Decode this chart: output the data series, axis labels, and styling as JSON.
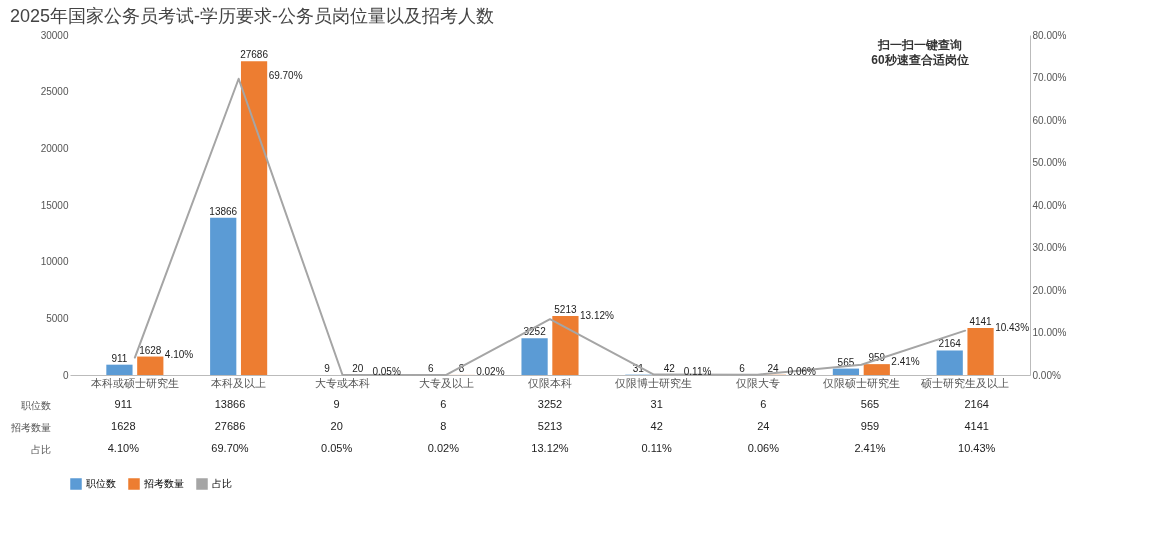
{
  "chart_data": {
    "type": "bar",
    "title": "2025年国家公务员考试-学历要求-公务员岗位量以及招考人数",
    "categories": [
      "本科或硕士研究生",
      "本科及以上",
      "大专或本科",
      "大专及以上",
      "仅限本科",
      "仅限博士研究生",
      "仅限大专",
      "仅限硕士研究生",
      "硕士研究生及以上"
    ],
    "series": [
      {
        "name": "职位数",
        "color": "#5b9bd5",
        "values": [
          911,
          13866,
          9,
          6,
          3252,
          31,
          6,
          565,
          2164
        ],
        "value_labels": [
          "911",
          "13866",
          "9",
          "6",
          "3252",
          "31",
          "6",
          "565",
          "2164"
        ]
      },
      {
        "name": "招考数量",
        "color": "#ed7d31",
        "values": [
          1628,
          27686,
          20,
          8,
          5213,
          42,
          24,
          959,
          4141
        ],
        "value_labels": [
          "1628",
          "27686",
          "20",
          "8",
          "5213",
          "42",
          "24",
          "959",
          "4141"
        ]
      },
      {
        "name": "占比",
        "type": "line",
        "axis": "y2",
        "color": "#a5a5a5",
        "values": [
          4.1,
          69.7,
          0.05,
          0.02,
          13.12,
          0.11,
          0.06,
          2.41,
          10.43
        ],
        "value_labels": [
          "4.10%",
          "69.70%",
          "0.05%",
          "0.02%",
          "13.12%",
          "0.11%",
          "0.06%",
          "2.41%",
          "10.43%"
        ]
      }
    ],
    "ylim": [
      0,
      30000
    ],
    "yticks": [
      0,
      5000,
      10000,
      15000,
      20000,
      25000,
      30000
    ],
    "y2lim": [
      0,
      80
    ],
    "y2ticks": [
      {
        "value": 0,
        "label": "0.00%"
      },
      {
        "value": 10,
        "label": "10.00%"
      },
      {
        "value": 20,
        "label": "20.00%"
      },
      {
        "value": 30,
        "label": "30.00%"
      },
      {
        "value": 40,
        "label": "40.00%"
      },
      {
        "value": 50,
        "label": "50.00%"
      },
      {
        "value": 60,
        "label": "60.00%"
      },
      {
        "value": 70,
        "label": "70.00%"
      },
      {
        "value": 80,
        "label": "80.00%"
      }
    ],
    "data_labels": true,
    "legend": "bottom",
    "annotations": [
      "扫一扫一键查询",
      "60秒速查合适岗位"
    ]
  }
}
